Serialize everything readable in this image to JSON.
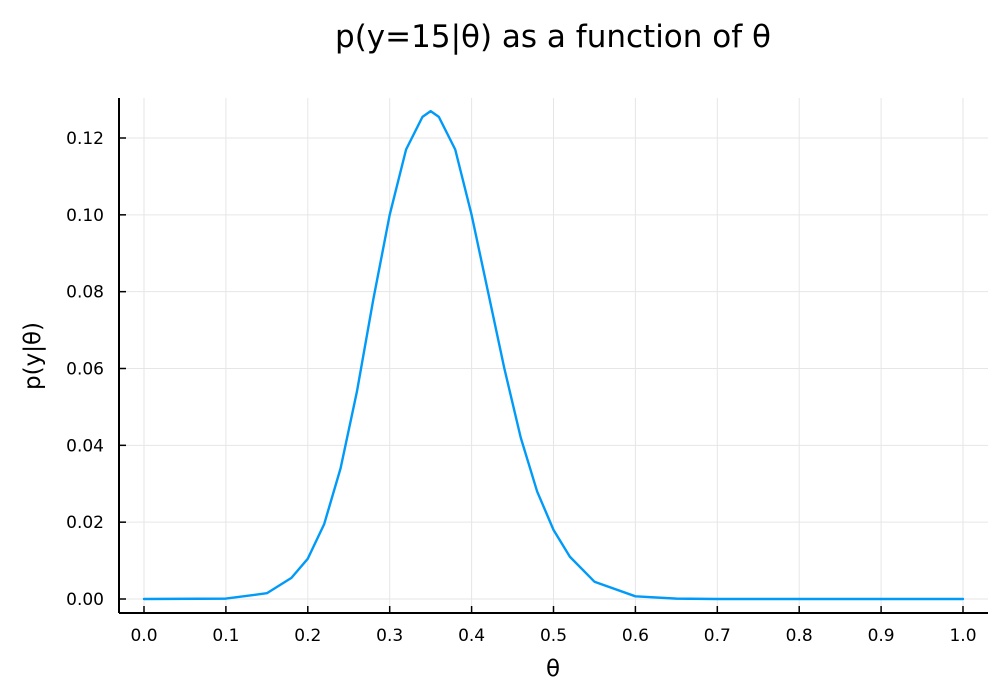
{
  "chart_data": {
    "type": "line",
    "title": "p(y=15|θ) as a function of θ",
    "xlabel": "θ",
    "ylabel": "p(y|θ)",
    "xlim": [
      0.0,
      1.0
    ],
    "ylim": [
      0.0,
      0.127
    ],
    "xticks": [
      "0.0",
      "0.1",
      "0.2",
      "0.3",
      "0.4",
      "0.5",
      "0.6",
      "0.7",
      "0.8",
      "0.9",
      "1.0"
    ],
    "yticks": [
      "0.00",
      "0.02",
      "0.04",
      "0.06",
      "0.08",
      "0.10",
      "0.12"
    ],
    "grid": true,
    "legend": "none",
    "series": [
      {
        "color": "#009af9",
        "x": [
          0.0,
          0.1,
          0.15,
          0.18,
          0.2,
          0.22,
          0.24,
          0.26,
          0.28,
          0.3,
          0.32,
          0.34,
          0.35,
          0.36,
          0.38,
          0.4,
          0.42,
          0.44,
          0.46,
          0.48,
          0.5,
          0.52,
          0.55,
          0.6,
          0.65,
          0.7,
          0.8,
          0.9,
          1.0
        ],
        "y": [
          0.0,
          0.0001,
          0.0015,
          0.0055,
          0.0105,
          0.0195,
          0.034,
          0.054,
          0.078,
          0.1,
          0.117,
          0.1255,
          0.127,
          0.1255,
          0.117,
          0.1,
          0.08,
          0.06,
          0.042,
          0.028,
          0.018,
          0.011,
          0.0045,
          0.0007,
          0.0001,
          0.0,
          0.0,
          0.0,
          0.0
        ]
      }
    ]
  }
}
